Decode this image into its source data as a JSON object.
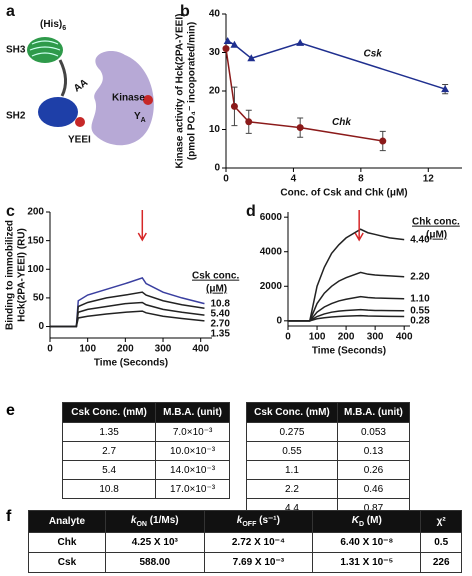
{
  "panel_a": {
    "label": "a",
    "his": "(His)",
    "his_sub": "6",
    "sh3": "SH3",
    "sh2": "SH2",
    "aa": "AA",
    "yeei": "YEEI",
    "kinase": "Kinase",
    "ya": "Y",
    "ya_sub": "A"
  },
  "chart_data": [
    {
      "type": "line",
      "panel_label": "b",
      "ylabel": [
        "Kinase activity of Hck(2PA-YEEI)",
        "(pmol PO₄⁻ incoporated/min)"
      ],
      "xlabel": "Conc. of Csk and Chk (μM)",
      "xlim": [
        0,
        14
      ],
      "xticks": [
        0,
        4,
        8,
        12
      ],
      "ylim": [
        0,
        40
      ],
      "yticks": [
        0,
        10,
        20,
        30,
        40
      ],
      "series_labels": "inline",
      "series": [
        {
          "name": "Csk",
          "color": "#1f2f8f",
          "marker": "triangle",
          "x": [
            0.1,
            0.5,
            1.5,
            4.4,
            13
          ],
          "values": [
            33,
            32,
            28.5,
            32.5,
            20.5
          ],
          "errors": [
            null,
            null,
            null,
            null,
            1.2
          ]
        },
        {
          "name": "Chk",
          "color": "#8b1a1a",
          "marker": "circle",
          "x": [
            0,
            0.5,
            1.35,
            4.4,
            9.3
          ],
          "values": [
            31,
            16,
            12,
            10.5,
            7
          ],
          "errors": [
            null,
            5,
            3,
            2.5,
            2.5
          ]
        }
      ]
    },
    {
      "type": "line",
      "panel_label": "c",
      "ylabel": [
        "Binding to immobilized",
        "Hck(2PA-YEEI) (RU)"
      ],
      "xlabel": "Time (Seconds)",
      "xlim": [
        0,
        430
      ],
      "xticks": [
        0,
        100,
        200,
        300,
        400
      ],
      "ylim": [
        -20,
        200
      ],
      "yticks": [
        0,
        50,
        100,
        150,
        200
      ],
      "series_labels": "end",
      "legend_title": [
        "Csk conc.",
        "(μM)"
      ],
      "arrow": {
        "x": 245,
        "color": "#d62728"
      },
      "x": [
        0,
        70,
        75,
        100,
        150,
        200,
        245,
        255,
        300,
        350,
        410
      ],
      "series": [
        {
          "name": "10.8",
          "color": "#3a3fa0",
          "values": [
            0,
            0,
            45,
            55,
            65,
            75,
            85,
            75,
            60,
            50,
            40
          ]
        },
        {
          "name": "5.40",
          "color": "#222222",
          "values": [
            0,
            0,
            35,
            42,
            50,
            55,
            60,
            55,
            45,
            38,
            32
          ]
        },
        {
          "name": "2.70",
          "color": "#222222",
          "values": [
            0,
            0,
            25,
            30,
            35,
            40,
            42,
            38,
            30,
            25,
            20
          ]
        },
        {
          "name": "1.35",
          "color": "#222222",
          "values": [
            0,
            0,
            15,
            18,
            22,
            25,
            27,
            24,
            18,
            14,
            10
          ]
        }
      ]
    },
    {
      "type": "line",
      "panel_label": "d",
      "xlabel": "Time (Seconds)",
      "xlim": [
        0,
        420
      ],
      "xticks": [
        0,
        100,
        200,
        300,
        400
      ],
      "ylim": [
        -300,
        6300
      ],
      "yticks": [
        0,
        2000,
        4000,
        6000
      ],
      "series_labels": "end",
      "legend_title": [
        "Chk conc.",
        "(μM)"
      ],
      "arrow": {
        "x": 245,
        "color": "#d62728"
      },
      "x": [
        0,
        75,
        100,
        125,
        150,
        175,
        200,
        250,
        275,
        300,
        350,
        400
      ],
      "series": [
        {
          "name": "4.40",
          "color": "#222222",
          "values": [
            0,
            0,
            2000,
            3100,
            3900,
            4400,
            4800,
            5300,
            5100,
            5000,
            4800,
            4700
          ]
        },
        {
          "name": "2.20",
          "color": "#222222",
          "values": [
            0,
            0,
            1000,
            1600,
            2000,
            2300,
            2500,
            2800,
            2700,
            2650,
            2600,
            2550
          ]
        },
        {
          "name": "1.10",
          "color": "#222222",
          "values": [
            0,
            0,
            500,
            800,
            1000,
            1150,
            1250,
            1400,
            1350,
            1320,
            1300,
            1280
          ]
        },
        {
          "name": "0.55",
          "color": "#222222",
          "values": [
            0,
            0,
            250,
            400,
            500,
            560,
            600,
            650,
            620,
            600,
            590,
            580
          ]
        },
        {
          "name": "0.28",
          "color": "#222222",
          "values": [
            0,
            0,
            120,
            180,
            220,
            250,
            270,
            300,
            280,
            270,
            260,
            250
          ]
        }
      ]
    }
  ],
  "table_e": {
    "label": "e",
    "left": {
      "headers": [
        "Csk Conc. (mM)",
        "M.B.A. (unit)"
      ],
      "rows": [
        [
          "1.35",
          "7.0×10⁻³"
        ],
        [
          "2.7",
          "10.0×10⁻³"
        ],
        [
          "5.4",
          "14.0×10⁻³"
        ],
        [
          "10.8",
          "17.0×10⁻³"
        ]
      ]
    },
    "right": {
      "headers": [
        "Csk Conc. (mM)",
        "M.B.A. (unit)"
      ],
      "rows": [
        [
          "0.275",
          "0.053"
        ],
        [
          "0.55",
          "0.13"
        ],
        [
          "1.1",
          "0.26"
        ],
        [
          "2.2",
          "0.46"
        ],
        [
          "4.4",
          "0.87"
        ]
      ]
    }
  },
  "table_f": {
    "label": "f",
    "headers": [
      {
        "text": "Analyte"
      },
      {
        "text": "k",
        "sub": "ON",
        "unit": " (1/Ms)"
      },
      {
        "text": "k",
        "sub": "OFF",
        "unit": " (s⁻¹)"
      },
      {
        "text": "K",
        "sub": "D",
        "unit": " (M)"
      },
      {
        "text": "χ²"
      }
    ],
    "rows": [
      [
        "Chk",
        "4.25 X 10³",
        "2.72 X 10⁻⁴",
        "6.40 X 10⁻⁸",
        "0.5"
      ],
      [
        "Csk",
        "588.00",
        "7.69 X 10⁻³",
        "1.31 X 10⁻⁵",
        "226"
      ]
    ]
  }
}
